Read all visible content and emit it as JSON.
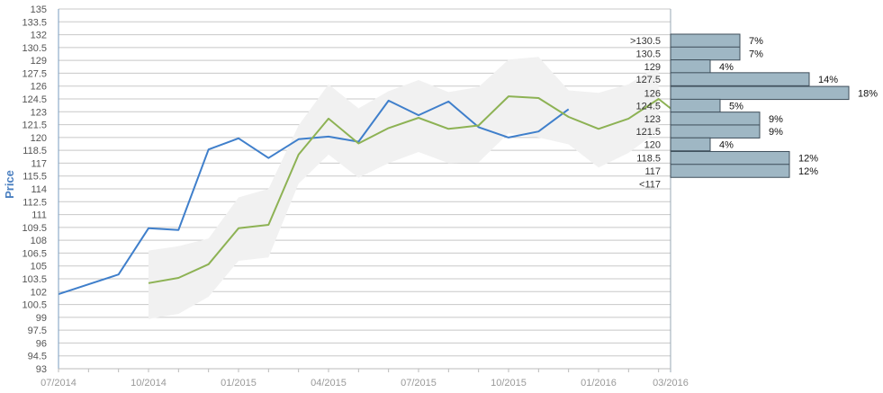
{
  "chart_data": {
    "type": "line",
    "ylabel": "Price",
    "ylim": [
      93,
      135
    ],
    "yticks": [
      93,
      94.5,
      96,
      97.5,
      99,
      100.5,
      102,
      103.5,
      105,
      106.5,
      108,
      109.5,
      111,
      112.5,
      114,
      115.5,
      117,
      118.5,
      120,
      121.5,
      123,
      124.5,
      126,
      127.5,
      129,
      130.5,
      132,
      133.5,
      135
    ],
    "ytick_labels": [
      "93",
      "94.5",
      "96",
      "97.5",
      "99",
      "100.5",
      "102",
      "103.5",
      "105",
      "106.5",
      "108",
      "109.5",
      "111",
      "112.5",
      "114",
      "115.5",
      "117",
      "118.5",
      "120",
      "121.5",
      "123",
      "124.5",
      "126",
      "127.5",
      "129",
      "130.5",
      "132",
      "133.5",
      "135"
    ],
    "xlim": [
      0,
      20.4
    ],
    "xticks": [
      {
        "x": 0,
        "label": "07/2014"
      },
      {
        "x": 3,
        "label": "10/2014"
      },
      {
        "x": 6,
        "label": "01/2015"
      },
      {
        "x": 9,
        "label": "04/2015"
      },
      {
        "x": 12,
        "label": "07/2015"
      },
      {
        "x": 15,
        "label": "10/2015"
      },
      {
        "x": 18,
        "label": "01/2016"
      },
      {
        "x": 20.4,
        "label": "03/2016"
      }
    ],
    "series": [
      {
        "name": "",
        "color": "#3f7fcb",
        "x": [
          0,
          2,
          3,
          4,
          5,
          6,
          7,
          8,
          9,
          10,
          11,
          12,
          13,
          14,
          15,
          16,
          17
        ],
        "y": [
          101.7,
          104,
          109.4,
          109.2,
          118.6,
          119.9,
          117.6,
          119.8,
          120.1,
          119.5,
          124.3,
          122.6,
          124.2,
          121.2,
          120,
          120.7,
          123.3
        ]
      },
      {
        "name": "",
        "color": "#8db254",
        "x": [
          3,
          4,
          5,
          6,
          7,
          8,
          9,
          10,
          11,
          12,
          13,
          14,
          15,
          16,
          17,
          18,
          19,
          20,
          20.4
        ],
        "y": [
          103,
          103.6,
          105.2,
          109.4,
          109.8,
          118,
          122.2,
          119.3,
          121.1,
          122.3,
          121,
          121.4,
          124.8,
          124.6,
          122.4,
          121,
          122.2,
          124.5,
          123.4
        ]
      }
    ],
    "band": {
      "color": "#f1f1f1",
      "x": [
        3,
        4,
        5,
        6,
        7,
        8,
        9,
        10,
        11,
        12,
        13,
        14,
        15,
        16,
        17,
        18,
        19,
        20
      ],
      "upper": [
        106.8,
        107.3,
        108.2,
        113,
        114,
        121.4,
        126.2,
        123.4,
        125.4,
        126.7,
        125.3,
        125.9,
        129.1,
        129.4,
        125.5,
        125.2,
        126.2,
        128.4
      ],
      "lower": [
        98.8,
        99.4,
        101.4,
        105.6,
        106,
        114.6,
        118,
        115.3,
        117,
        118.3,
        117,
        117.1,
        120.5,
        120,
        119.2,
        116.5,
        118.2,
        120.8
      ]
    },
    "distribution": [
      {
        "label": ">130.5",
        "pct": "7%",
        "value": 7,
        "y": 131.3
      },
      {
        "label": "130.5",
        "pct": "7%",
        "value": 7,
        "y": 129.8
      },
      {
        "label": "129",
        "pct": "4%",
        "value": 4,
        "y": 128.3
      },
      {
        "label": "127.5",
        "pct": "14%",
        "value": 14,
        "y": 126.8
      },
      {
        "label": "126",
        "pct": "18%",
        "value": 18,
        "y": 125.2
      },
      {
        "label": "124.5",
        "pct": "5%",
        "value": 5,
        "y": 123.7
      },
      {
        "label": "123",
        "pct": "9%",
        "value": 9,
        "y": 122.2
      },
      {
        "label": "121.5",
        "pct": "9%",
        "value": 9,
        "y": 120.7
      },
      {
        "label": "120",
        "pct": "4%",
        "value": 4,
        "y": 119.2
      },
      {
        "label": "118.5",
        "pct": "12%",
        "value": 12,
        "y": 117.6
      },
      {
        "label": "117",
        "pct": "12%",
        "value": 12,
        "y": 116.1
      },
      {
        "label": "<117",
        "pct": "",
        "value": 0,
        "y": 114.6
      }
    ],
    "distribution_color": "#9fb7c4",
    "grid": true
  }
}
